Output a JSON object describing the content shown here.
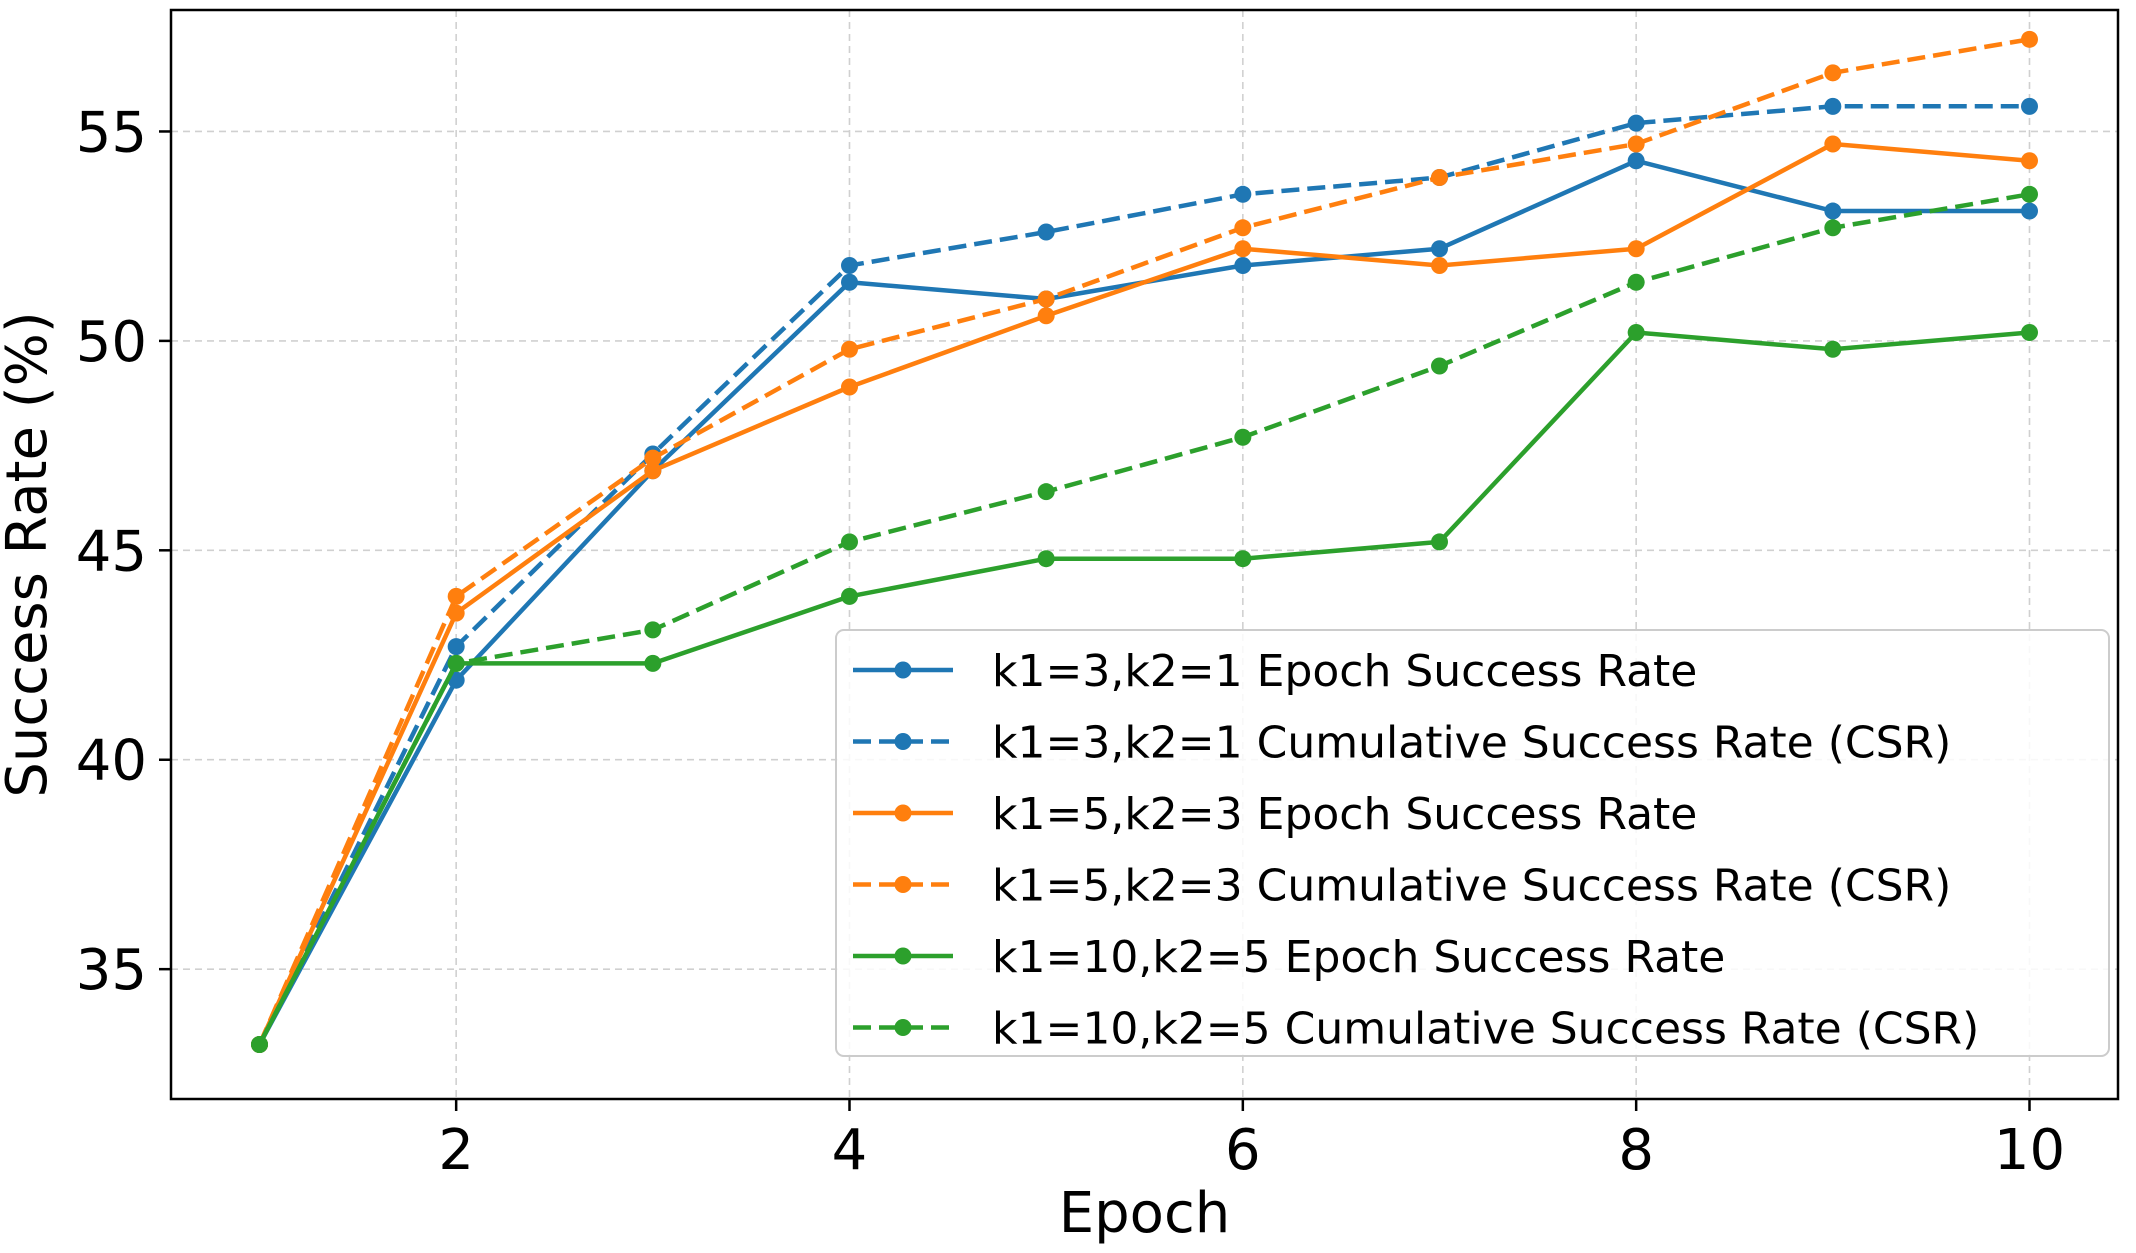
{
  "chart_data": {
    "type": "line",
    "title": "",
    "xlabel": "Epoch",
    "ylabel": "Success Rate (%)",
    "x": [
      1,
      2,
      3,
      4,
      5,
      6,
      7,
      8,
      9,
      10
    ],
    "xlim": [
      0.55,
      10.45
    ],
    "ylim": [
      31.9,
      57.9
    ],
    "xticks": [
      2,
      4,
      6,
      8,
      10
    ],
    "yticks": [
      35,
      40,
      45,
      50,
      55
    ],
    "grid": true,
    "legend_position": "lower-right",
    "series": [
      {
        "name": "k1=3,k2=1 Epoch Success Rate",
        "color": "#1f77b4",
        "dashed": false,
        "values": [
          33.2,
          41.9,
          46.9,
          51.4,
          51.0,
          51.8,
          52.2,
          54.3,
          53.1,
          53.1
        ]
      },
      {
        "name": "k1=3,k2=1 Cumulative Success Rate (CSR)",
        "color": "#1f77b4",
        "dashed": true,
        "values": [
          33.2,
          42.7,
          47.3,
          51.8,
          52.6,
          53.5,
          53.9,
          55.2,
          55.6,
          55.6
        ]
      },
      {
        "name": "k1=5,k2=3 Epoch Success Rate",
        "color": "#ff7f0e",
        "dashed": false,
        "values": [
          33.2,
          43.5,
          46.9,
          48.9,
          50.6,
          52.2,
          51.8,
          52.2,
          54.7,
          54.3
        ]
      },
      {
        "name": "k1=5,k2=3 Cumulative Success Rate (CSR)",
        "color": "#ff7f0e",
        "dashed": true,
        "values": [
          33.2,
          43.9,
          47.2,
          49.8,
          51.0,
          52.7,
          53.9,
          54.7,
          56.4,
          57.2
        ]
      },
      {
        "name": "k1=10,k2=5 Epoch Success Rate",
        "color": "#2ca02c",
        "dashed": false,
        "values": [
          33.2,
          42.3,
          42.3,
          43.9,
          44.8,
          44.8,
          45.2,
          50.2,
          49.8,
          50.2
        ]
      },
      {
        "name": "k1=10,k2=5 Cumulative Success Rate (CSR)",
        "color": "#2ca02c",
        "dashed": true,
        "values": [
          33.2,
          42.3,
          43.1,
          45.2,
          46.4,
          47.7,
          49.4,
          51.4,
          52.7,
          53.5
        ]
      }
    ]
  }
}
